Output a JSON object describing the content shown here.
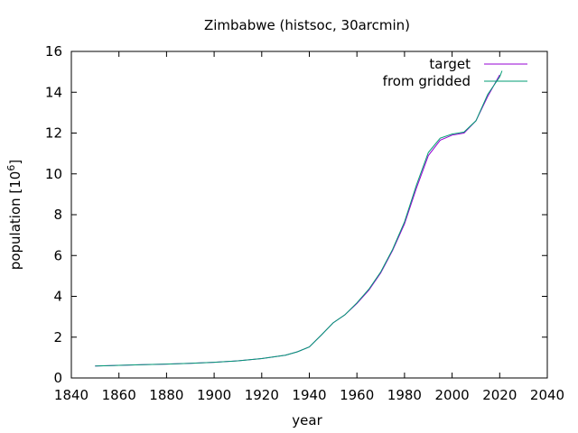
{
  "chart_data": {
    "type": "line",
    "title": "Zimbabwe (histsoc, 30arcmin)",
    "xlabel": "year",
    "ylabel": "population [10",
    "ylabel_sup": "6",
    "ylabel_close": "]",
    "xlim": [
      1840,
      2040
    ],
    "ylim": [
      0,
      16
    ],
    "xticks": [
      1840,
      1860,
      1880,
      1900,
      1920,
      1940,
      1960,
      1980,
      2000,
      2020,
      2040
    ],
    "yticks": [
      0,
      2,
      4,
      6,
      8,
      10,
      12,
      14,
      16
    ],
    "grid": false,
    "legend_position": "top-right",
    "series": [
      {
        "name": "target",
        "color": "#9400d3",
        "x": [
          1850,
          1860,
          1870,
          1880,
          1890,
          1900,
          1910,
          1920,
          1930,
          1935,
          1940,
          1945,
          1950,
          1955,
          1960,
          1965,
          1970,
          1975,
          1980,
          1985,
          1990,
          1995,
          2000,
          2005,
          2010,
          2015,
          2020
        ],
        "y": [
          0.59,
          0.62,
          0.65,
          0.68,
          0.72,
          0.77,
          0.84,
          0.95,
          1.12,
          1.28,
          1.52,
          2.1,
          2.7,
          3.1,
          3.65,
          4.3,
          5.15,
          6.25,
          7.55,
          9.3,
          10.9,
          11.65,
          11.9,
          12.0,
          12.6,
          13.8,
          14.85
        ]
      },
      {
        "name": "from gridded",
        "color": "#009e73",
        "x": [
          1850,
          1860,
          1870,
          1880,
          1890,
          1900,
          1910,
          1920,
          1930,
          1935,
          1940,
          1945,
          1950,
          1955,
          1960,
          1965,
          1970,
          1975,
          1980,
          1985,
          1990,
          1995,
          2000,
          2005,
          2010,
          2015,
          2020,
          2021
        ],
        "y": [
          0.59,
          0.62,
          0.65,
          0.68,
          0.72,
          0.77,
          0.84,
          0.95,
          1.12,
          1.28,
          1.52,
          2.1,
          2.7,
          3.1,
          3.68,
          4.35,
          5.2,
          6.3,
          7.65,
          9.45,
          11.05,
          11.75,
          11.95,
          12.05,
          12.6,
          13.9,
          14.75,
          15.05
        ]
      }
    ]
  }
}
